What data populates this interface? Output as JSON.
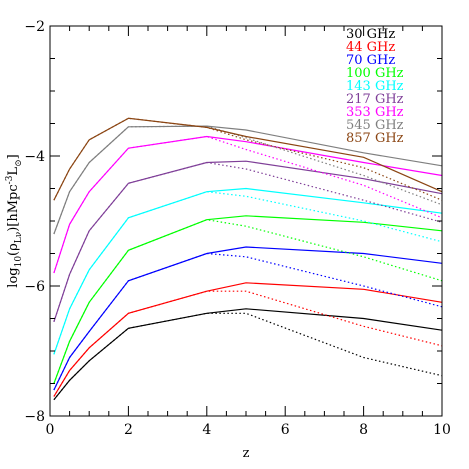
{
  "chart_data": {
    "type": "line",
    "xlabel": "z",
    "ylabel": "log10(ρLν)[hMpc⁻³L⊙]",
    "ylabel_parts": {
      "pre": "log",
      "pre_sub": "10",
      "mid": "(ρ",
      "mid_sub": "Lν",
      "post": ")[hMpc",
      "post_sup": "-3",
      "unit": "L",
      "unit_sub": "⊙",
      "close": "]"
    },
    "xlim": [
      0,
      10
    ],
    "ylim": [
      -8,
      -2
    ],
    "x_ticks": [
      0,
      2,
      4,
      6,
      8,
      10
    ],
    "x_tick_labels": [
      "0",
      "2",
      "4",
      "6",
      "8",
      "10"
    ],
    "y_ticks": [
      -8,
      -6,
      -4,
      -2
    ],
    "y_tick_labels": [
      "−8",
      "−6",
      "−4",
      "−2"
    ],
    "legend_position": "top-right",
    "x": [
      0.1,
      0.5,
      1,
      2,
      4,
      5,
      8,
      10
    ],
    "series": [
      {
        "name": "30 GHz",
        "color": "#000000",
        "solid": [
          -7.75,
          -7.45,
          -7.15,
          -6.65,
          -6.42,
          -6.35,
          -6.5,
          -6.68
        ],
        "dotted": [
          -7.75,
          -7.45,
          -7.15,
          -6.65,
          -6.42,
          -6.42,
          -7.1,
          -7.38
        ]
      },
      {
        "name": "44 GHz",
        "color": "#ff0000",
        "solid": [
          -7.7,
          -7.3,
          -6.95,
          -6.42,
          -6.08,
          -5.95,
          -6.05,
          -6.25
        ],
        "dotted": [
          -7.7,
          -7.3,
          -6.95,
          -6.42,
          -6.08,
          -6.08,
          -6.62,
          -6.92
        ]
      },
      {
        "name": "70 GHz",
        "color": "#0000ff",
        "solid": [
          -7.6,
          -7.1,
          -6.7,
          -5.92,
          -5.5,
          -5.4,
          -5.5,
          -5.65
        ],
        "dotted": [
          -7.6,
          -7.1,
          -6.7,
          -5.92,
          -5.5,
          -5.55,
          -6.0,
          -6.32
        ]
      },
      {
        "name": "100 GHz",
        "color": "#00ff00",
        "solid": [
          -7.5,
          -6.85,
          -6.25,
          -5.45,
          -4.98,
          -4.92,
          -5.02,
          -5.15
        ],
        "dotted": [
          -7.5,
          -6.85,
          -6.25,
          -5.45,
          -4.98,
          -5.08,
          -5.55,
          -5.92
        ]
      },
      {
        "name": "143 GHz",
        "color": "#00ffff",
        "solid": [
          -7.05,
          -6.35,
          -5.75,
          -4.95,
          -4.55,
          -4.5,
          -4.72,
          -4.88
        ],
        "dotted": [
          -7.05,
          -6.35,
          -5.75,
          -4.95,
          -4.55,
          -4.62,
          -5.0,
          -5.32
        ]
      },
      {
        "name": "217 GHz",
        "color": "#7f3f98",
        "solid": [
          -6.55,
          -5.82,
          -5.15,
          -4.42,
          -4.1,
          -4.08,
          -4.35,
          -4.58
        ],
        "dotted": [
          -6.55,
          -5.82,
          -5.15,
          -4.42,
          -4.1,
          -4.2,
          -4.68,
          -5.02
        ]
      },
      {
        "name": "353 GHz",
        "color": "#ff00ff",
        "solid": [
          -5.8,
          -5.05,
          -4.55,
          -3.88,
          -3.7,
          -3.78,
          -4.1,
          -4.3
        ],
        "dotted": [
          -5.8,
          -5.05,
          -4.55,
          -3.88,
          -3.7,
          -3.9,
          -4.45,
          -4.95
        ]
      },
      {
        "name": "545 GHz",
        "color": "#7f7f7f",
        "solid": [
          -5.2,
          -4.55,
          -4.1,
          -3.55,
          -3.54,
          -3.6,
          -3.95,
          -4.15
        ],
        "dotted": [
          -5.2,
          -4.55,
          -4.1,
          -3.55,
          -3.54,
          -3.72,
          -4.3,
          -4.75
        ]
      },
      {
        "name": "857 GHz",
        "color": "#8b4513",
        "solid": [
          -4.68,
          -4.2,
          -3.75,
          -3.42,
          -3.56,
          -3.7,
          -4.02,
          -4.55
        ],
        "dotted": [
          -4.68,
          -4.2,
          -3.75,
          -3.42,
          -3.56,
          -3.75,
          -4.18,
          -4.68
        ]
      }
    ]
  }
}
